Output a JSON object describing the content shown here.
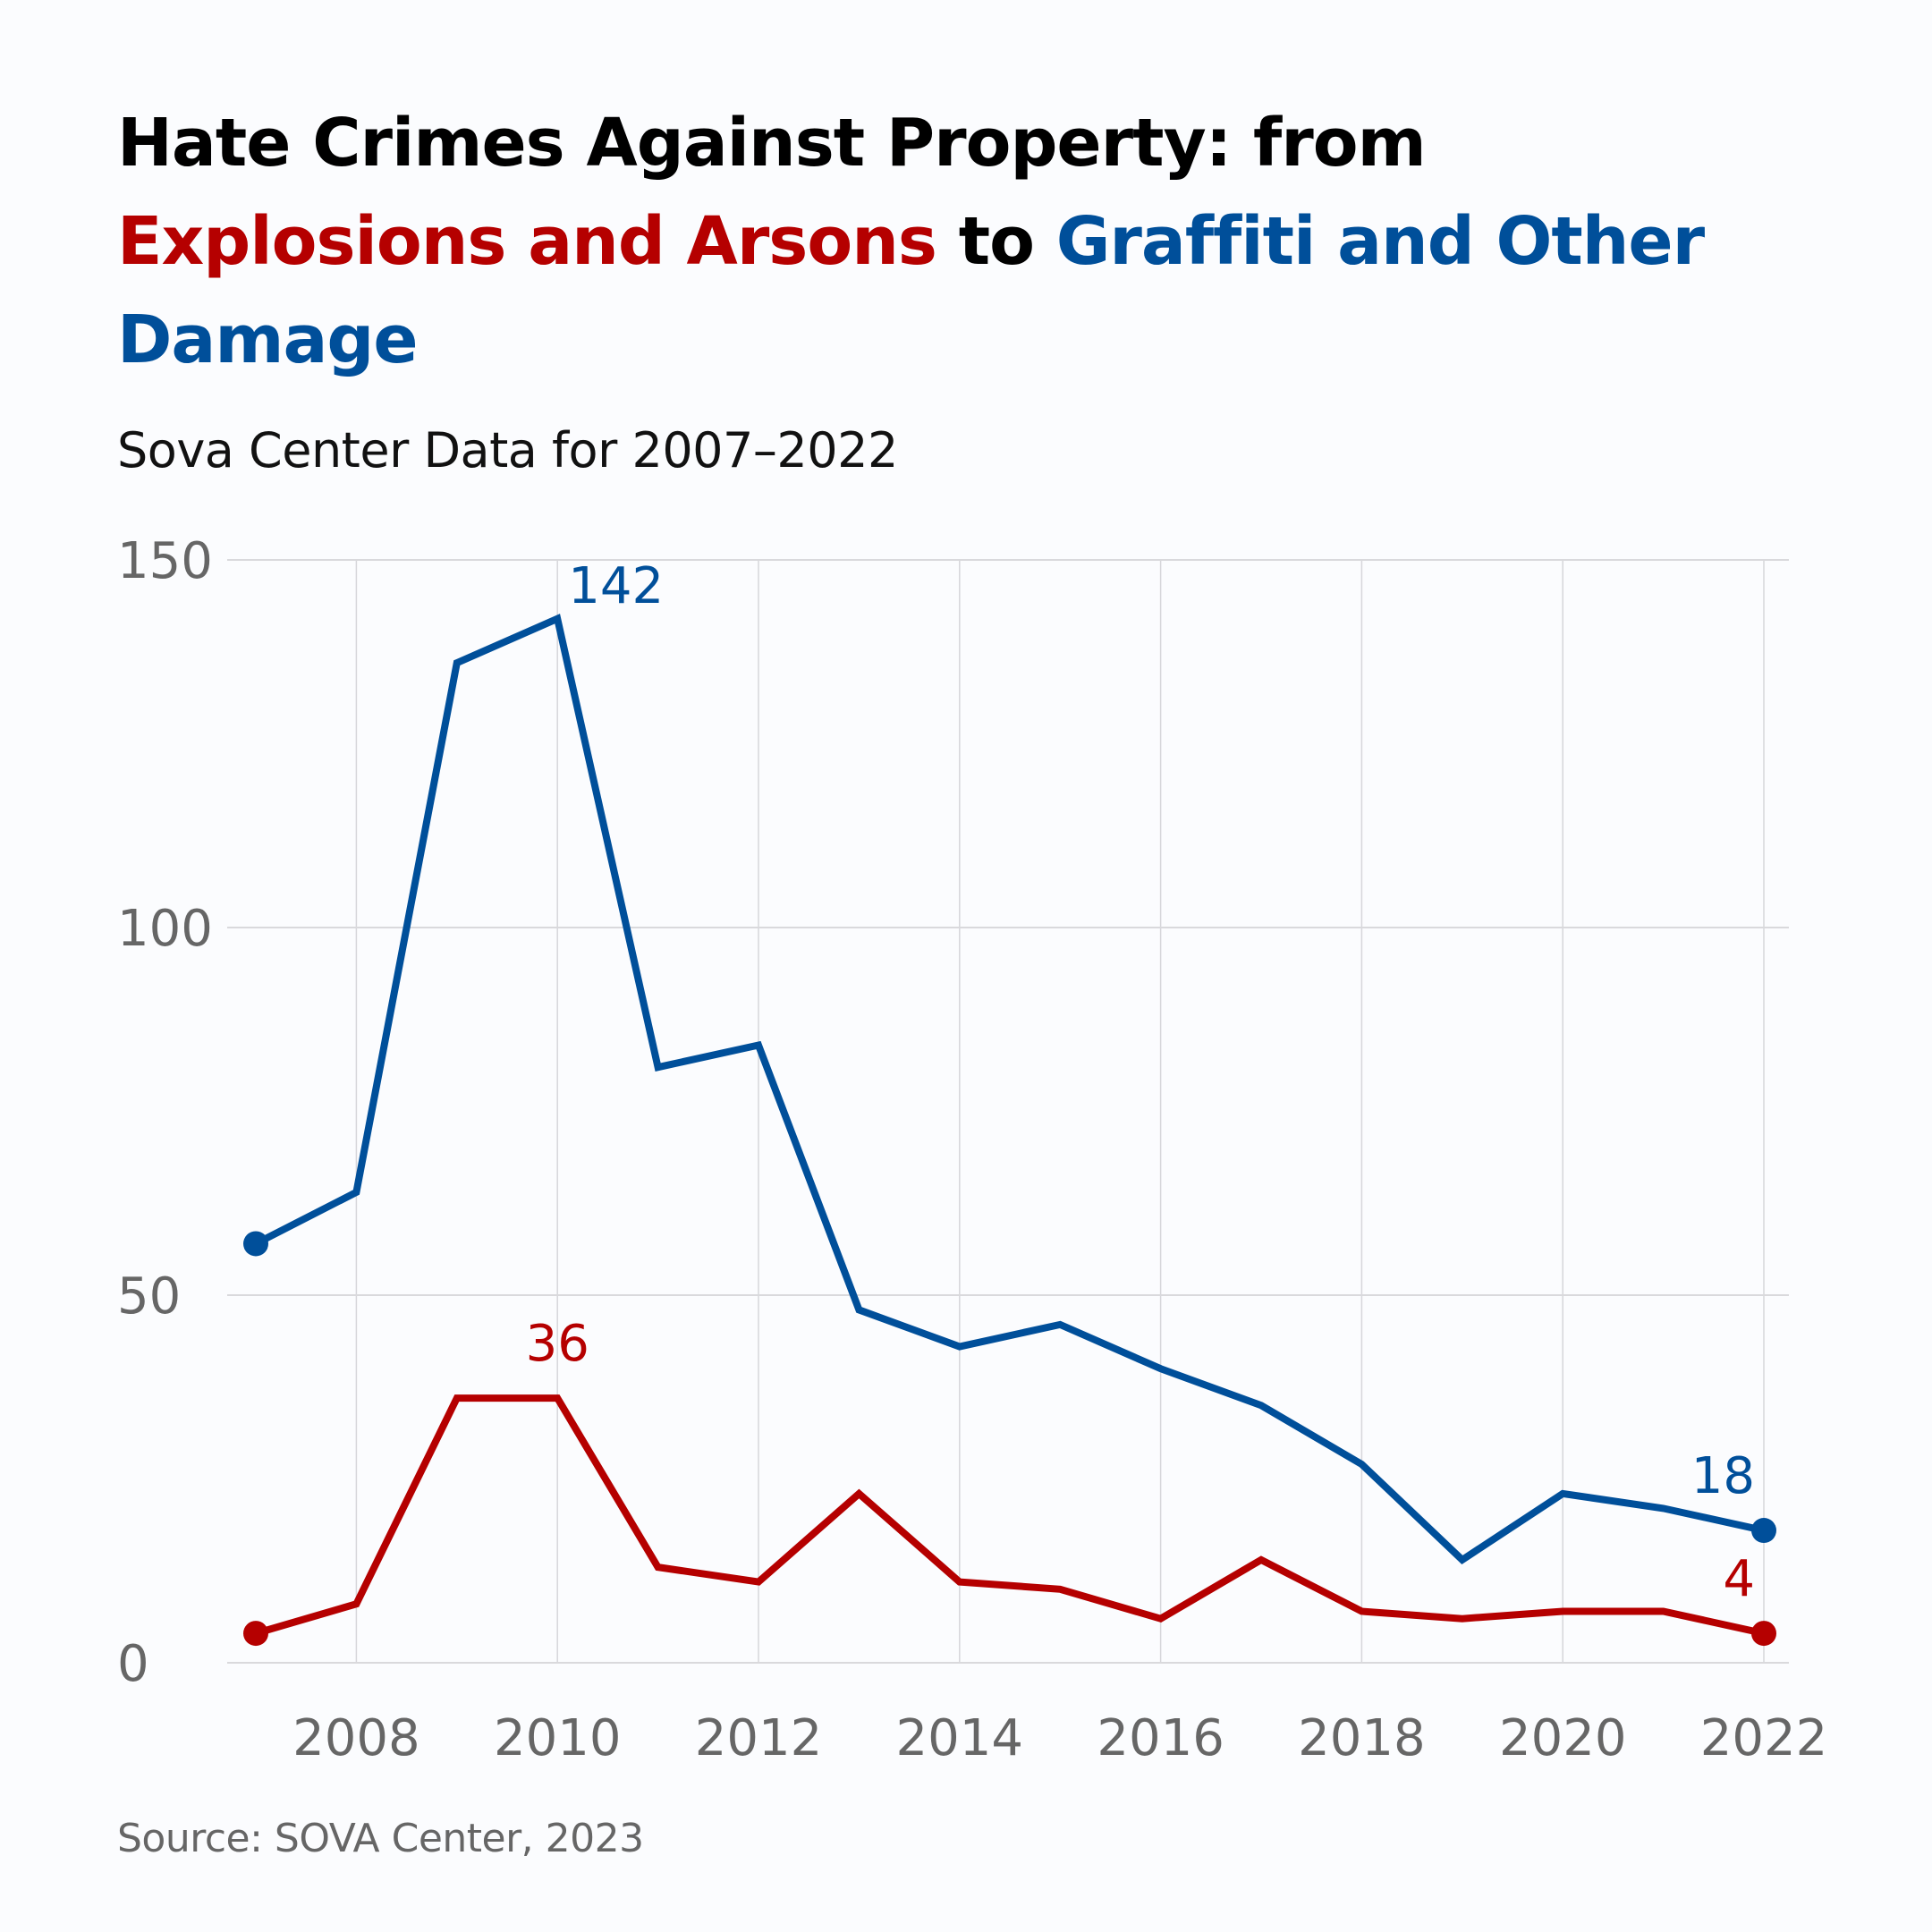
{
  "title": {
    "part1": "Hate Crimes Against Property: from",
    "part2_red": "Explosions and Arsons",
    "part3": "to",
    "part4_blue": "Graffiti and Other Damage"
  },
  "subtitle": "Sova Center Data for 2007–2022",
  "source": "Source: SOVA Center, 2023",
  "colors": {
    "red": "#b50000",
    "blue": "#004f9a",
    "grid": "#d9d9dc",
    "tick_text": "#666666"
  },
  "chart_data": {
    "type": "line",
    "title": "Hate Crimes Against Property: from Explosions and Arsons to Graffiti and Other Damage",
    "subtitle": "Sova Center Data for 2007–2022",
    "xlabel": "",
    "ylabel": "",
    "x": [
      2007,
      2008,
      2009,
      2010,
      2011,
      2012,
      2013,
      2014,
      2015,
      2016,
      2017,
      2018,
      2019,
      2020,
      2021,
      2022
    ],
    "xticks": [
      "2008",
      "2010",
      "2012",
      "2014",
      "2016",
      "2018",
      "2020",
      "2022"
    ],
    "yticks": [
      "0",
      "50",
      "100",
      "150"
    ],
    "ylim": [
      0,
      150
    ],
    "xlim": [
      2007,
      2022
    ],
    "grid": true,
    "legend": "none (series identified by colored title text)",
    "series": [
      {
        "name": "Graffiti and Other Damage",
        "color": "#004f9a",
        "values": [
          57,
          64,
          136,
          142,
          81,
          84,
          48,
          43,
          46,
          40,
          35,
          27,
          14,
          23,
          21,
          18
        ]
      },
      {
        "name": "Explosions and Arsons",
        "color": "#b50000",
        "values": [
          4,
          8,
          36,
          36,
          13,
          11,
          23,
          11,
          10,
          6,
          14,
          7,
          6,
          7,
          7,
          4
        ]
      }
    ],
    "annotations": [
      {
        "series": "Graffiti and Other Damage",
        "x": 2010,
        "text": "142"
      },
      {
        "series": "Graffiti and Other Damage",
        "x": 2022,
        "text": "18"
      },
      {
        "series": "Explosions and Arsons",
        "x": 2010,
        "text": "36"
      },
      {
        "series": "Explosions and Arsons",
        "x": 2022,
        "text": "4"
      }
    ]
  }
}
